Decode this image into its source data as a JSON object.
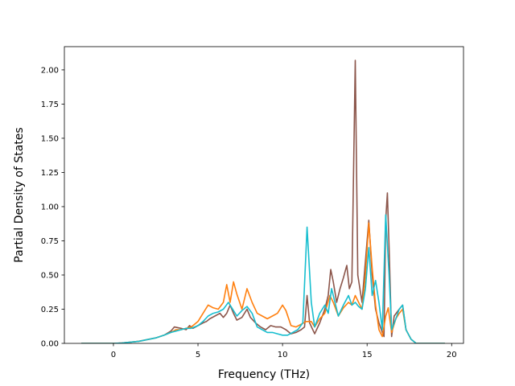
{
  "chart_data": {
    "type": "line",
    "title": "",
    "xlabel": "Frequency (THz)",
    "ylabel": "Partial Density of States",
    "xlim": [
      -2.9,
      20.7
    ],
    "ylim": [
      0,
      2.17
    ],
    "xticks": [
      0,
      5,
      10,
      15,
      20
    ],
    "yticks": [
      0.0,
      0.25,
      0.5,
      0.75,
      1.0,
      1.25,
      1.5,
      1.75,
      2.0
    ],
    "xtick_labels": [
      "0",
      "5",
      "10",
      "15",
      "20"
    ],
    "ytick_labels": [
      "0.00",
      "0.25",
      "0.50",
      "0.75",
      "1.00",
      "1.25",
      "1.50",
      "1.75",
      "2.00"
    ],
    "grid": false,
    "legend": "none",
    "series": [
      {
        "color": "#8c564b",
        "points": [
          [
            -1.9,
            0
          ],
          [
            0,
            0
          ],
          [
            0.5,
            0.003
          ],
          [
            1.5,
            0.015
          ],
          [
            2.5,
            0.04
          ],
          [
            3.0,
            0.06
          ],
          [
            3.4,
            0.09
          ],
          [
            3.6,
            0.12
          ],
          [
            4.0,
            0.11
          ],
          [
            4.3,
            0.1
          ],
          [
            4.5,
            0.13
          ],
          [
            4.7,
            0.11
          ],
          [
            5.0,
            0.13
          ],
          [
            5.3,
            0.15
          ],
          [
            5.5,
            0.16
          ],
          [
            5.7,
            0.18
          ],
          [
            6.0,
            0.2
          ],
          [
            6.3,
            0.22
          ],
          [
            6.5,
            0.19
          ],
          [
            6.7,
            0.22
          ],
          [
            6.9,
            0.28
          ],
          [
            7.1,
            0.22
          ],
          [
            7.3,
            0.17
          ],
          [
            7.6,
            0.19
          ],
          [
            7.9,
            0.25
          ],
          [
            8.1,
            0.19
          ],
          [
            8.4,
            0.15
          ],
          [
            8.7,
            0.12
          ],
          [
            9.0,
            0.1
          ],
          [
            9.3,
            0.13
          ],
          [
            9.6,
            0.12
          ],
          [
            9.9,
            0.12
          ],
          [
            10.2,
            0.1
          ],
          [
            10.5,
            0.07
          ],
          [
            10.8,
            0.08
          ],
          [
            11.1,
            0.1
          ],
          [
            11.3,
            0.12
          ],
          [
            11.45,
            0.35
          ],
          [
            11.6,
            0.15
          ],
          [
            11.9,
            0.07
          ],
          [
            12.2,
            0.15
          ],
          [
            12.5,
            0.25
          ],
          [
            12.7,
            0.35
          ],
          [
            12.85,
            0.54
          ],
          [
            13.0,
            0.45
          ],
          [
            13.2,
            0.3
          ],
          [
            13.4,
            0.4
          ],
          [
            13.6,
            0.48
          ],
          [
            13.8,
            0.57
          ],
          [
            13.95,
            0.4
          ],
          [
            14.1,
            0.45
          ],
          [
            14.3,
            2.07
          ],
          [
            14.45,
            0.5
          ],
          [
            14.7,
            0.3
          ],
          [
            14.9,
            0.6
          ],
          [
            15.1,
            0.9
          ],
          [
            15.3,
            0.5
          ],
          [
            15.5,
            0.25
          ],
          [
            15.7,
            0.15
          ],
          [
            15.9,
            0.08
          ],
          [
            16.0,
            0.05
          ],
          [
            16.1,
            0.9
          ],
          [
            16.2,
            1.1
          ],
          [
            16.3,
            0.7
          ],
          [
            16.45,
            0.05
          ],
          [
            16.6,
            0.2
          ],
          [
            16.9,
            0.25
          ],
          [
            17.1,
            0.28
          ],
          [
            17.3,
            0.1
          ],
          [
            17.6,
            0.03
          ],
          [
            17.9,
            0
          ],
          [
            19.6,
            0
          ]
        ]
      },
      {
        "color": "#ff7f0e",
        "points": [
          [
            -1.9,
            0
          ],
          [
            0,
            0
          ],
          [
            0.5,
            0.003
          ],
          [
            1.5,
            0.015
          ],
          [
            2.5,
            0.04
          ],
          [
            3.0,
            0.06
          ],
          [
            3.4,
            0.08
          ],
          [
            3.7,
            0.1
          ],
          [
            4.0,
            0.1
          ],
          [
            4.3,
            0.11
          ],
          [
            4.6,
            0.12
          ],
          [
            5.0,
            0.16
          ],
          [
            5.3,
            0.22
          ],
          [
            5.6,
            0.28
          ],
          [
            5.9,
            0.26
          ],
          [
            6.2,
            0.25
          ],
          [
            6.5,
            0.3
          ],
          [
            6.7,
            0.43
          ],
          [
            6.9,
            0.3
          ],
          [
            7.1,
            0.45
          ],
          [
            7.3,
            0.36
          ],
          [
            7.6,
            0.25
          ],
          [
            7.9,
            0.4
          ],
          [
            8.2,
            0.3
          ],
          [
            8.5,
            0.22
          ],
          [
            8.8,
            0.2
          ],
          [
            9.1,
            0.18
          ],
          [
            9.4,
            0.2
          ],
          [
            9.7,
            0.22
          ],
          [
            10.0,
            0.28
          ],
          [
            10.2,
            0.24
          ],
          [
            10.5,
            0.13
          ],
          [
            10.8,
            0.12
          ],
          [
            11.1,
            0.14
          ],
          [
            11.4,
            0.16
          ],
          [
            11.7,
            0.16
          ],
          [
            11.9,
            0.12
          ],
          [
            12.2,
            0.18
          ],
          [
            12.5,
            0.22
          ],
          [
            12.8,
            0.35
          ],
          [
            13.0,
            0.3
          ],
          [
            13.3,
            0.2
          ],
          [
            13.6,
            0.26
          ],
          [
            13.9,
            0.3
          ],
          [
            14.1,
            0.28
          ],
          [
            14.3,
            0.35
          ],
          [
            14.5,
            0.3
          ],
          [
            14.7,
            0.25
          ],
          [
            14.9,
            0.5
          ],
          [
            15.1,
            0.88
          ],
          [
            15.3,
            0.55
          ],
          [
            15.5,
            0.28
          ],
          [
            15.7,
            0.1
          ],
          [
            15.9,
            0.05
          ],
          [
            16.1,
            0.2
          ],
          [
            16.25,
            0.26
          ],
          [
            16.45,
            0.08
          ],
          [
            16.7,
            0.18
          ],
          [
            16.9,
            0.22
          ],
          [
            17.1,
            0.25
          ],
          [
            17.3,
            0.1
          ],
          [
            17.6,
            0.03
          ],
          [
            17.9,
            0
          ],
          [
            19.6,
            0
          ]
        ]
      },
      {
        "color": "#17becf",
        "points": [
          [
            -1.9,
            0
          ],
          [
            0,
            0
          ],
          [
            0.5,
            0.003
          ],
          [
            1.5,
            0.015
          ],
          [
            2.5,
            0.04
          ],
          [
            3.0,
            0.06
          ],
          [
            3.4,
            0.08
          ],
          [
            3.7,
            0.09
          ],
          [
            4.0,
            0.1
          ],
          [
            4.3,
            0.11
          ],
          [
            4.6,
            0.11
          ],
          [
            5.0,
            0.13
          ],
          [
            5.3,
            0.16
          ],
          [
            5.6,
            0.2
          ],
          [
            5.9,
            0.22
          ],
          [
            6.2,
            0.23
          ],
          [
            6.5,
            0.25
          ],
          [
            6.8,
            0.3
          ],
          [
            7.0,
            0.26
          ],
          [
            7.3,
            0.2
          ],
          [
            7.6,
            0.24
          ],
          [
            7.9,
            0.27
          ],
          [
            8.2,
            0.22
          ],
          [
            8.5,
            0.12
          ],
          [
            8.8,
            0.1
          ],
          [
            9.1,
            0.08
          ],
          [
            9.4,
            0.08
          ],
          [
            9.7,
            0.07
          ],
          [
            10.0,
            0.06
          ],
          [
            10.3,
            0.06
          ],
          [
            10.6,
            0.08
          ],
          [
            10.9,
            0.1
          ],
          [
            11.2,
            0.15
          ],
          [
            11.45,
            0.85
          ],
          [
            11.7,
            0.3
          ],
          [
            11.9,
            0.12
          ],
          [
            12.2,
            0.22
          ],
          [
            12.5,
            0.28
          ],
          [
            12.7,
            0.22
          ],
          [
            12.9,
            0.4
          ],
          [
            13.1,
            0.3
          ],
          [
            13.3,
            0.2
          ],
          [
            13.6,
            0.28
          ],
          [
            13.9,
            0.35
          ],
          [
            14.1,
            0.28
          ],
          [
            14.3,
            0.3
          ],
          [
            14.5,
            0.27
          ],
          [
            14.7,
            0.25
          ],
          [
            14.9,
            0.4
          ],
          [
            15.1,
            0.7
          ],
          [
            15.3,
            0.35
          ],
          [
            15.5,
            0.46
          ],
          [
            15.7,
            0.3
          ],
          [
            15.9,
            0.1
          ],
          [
            16.1,
            0.94
          ],
          [
            16.3,
            0.5
          ],
          [
            16.45,
            0.1
          ],
          [
            16.7,
            0.18
          ],
          [
            16.9,
            0.25
          ],
          [
            17.1,
            0.28
          ],
          [
            17.3,
            0.1
          ],
          [
            17.6,
            0.03
          ],
          [
            17.9,
            0
          ],
          [
            19.6,
            0
          ]
        ]
      }
    ]
  }
}
